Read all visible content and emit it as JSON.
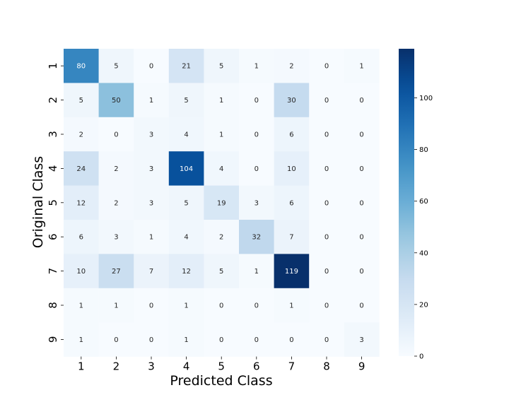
{
  "chart_data": {
    "type": "heatmap",
    "title": "",
    "xlabel": "Predicted Class",
    "ylabel": "Original Class",
    "x_categories": [
      "1",
      "2",
      "3",
      "4",
      "5",
      "6",
      "7",
      "8",
      "9"
    ],
    "y_categories": [
      "1",
      "2",
      "3",
      "4",
      "5",
      "6",
      "7",
      "8",
      "9"
    ],
    "values": [
      [
        80,
        5,
        0,
        21,
        5,
        1,
        2,
        0,
        1
      ],
      [
        5,
        50,
        1,
        5,
        1,
        0,
        30,
        0,
        0
      ],
      [
        2,
        0,
        3,
        4,
        1,
        0,
        6,
        0,
        0
      ],
      [
        24,
        2,
        3,
        104,
        4,
        0,
        10,
        0,
        0
      ],
      [
        12,
        2,
        3,
        5,
        19,
        3,
        6,
        0,
        0
      ],
      [
        6,
        3,
        1,
        4,
        2,
        32,
        7,
        0,
        0
      ],
      [
        10,
        27,
        7,
        12,
        5,
        1,
        119,
        0,
        0
      ],
      [
        1,
        1,
        0,
        1,
        0,
        0,
        1,
        0,
        0
      ],
      [
        1,
        0,
        0,
        1,
        0,
        0,
        0,
        0,
        3
      ]
    ],
    "colormap": "Blues",
    "color_range": [
      0,
      119
    ],
    "colorbar_ticks": [
      0,
      20,
      40,
      60,
      80,
      100
    ],
    "colors": {
      "low": "#f7fbff",
      "high": "#08306b"
    }
  }
}
